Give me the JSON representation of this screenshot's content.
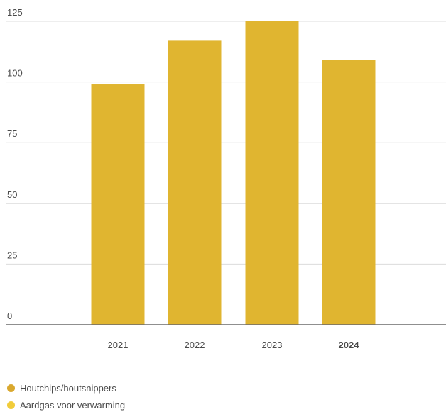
{
  "chart_data": {
    "type": "bar",
    "categories": [
      "2021",
      "2022",
      "2023",
      "2024"
    ],
    "highlighted_category": "2024",
    "series": [
      {
        "values": [
          99,
          117,
          125,
          109
        ],
        "color": "#E0B530"
      }
    ],
    "ylim": [
      0,
      125
    ],
    "yticks": [
      0,
      25,
      50,
      75,
      100,
      125
    ],
    "grid": true,
    "legend_position": "bottom-left",
    "legend": [
      {
        "label": "Houtchips/houtsnippers",
        "color": "#D9A82E"
      },
      {
        "label": "Aardgas voor verwarming",
        "color": "#F1CC3A"
      }
    ]
  }
}
